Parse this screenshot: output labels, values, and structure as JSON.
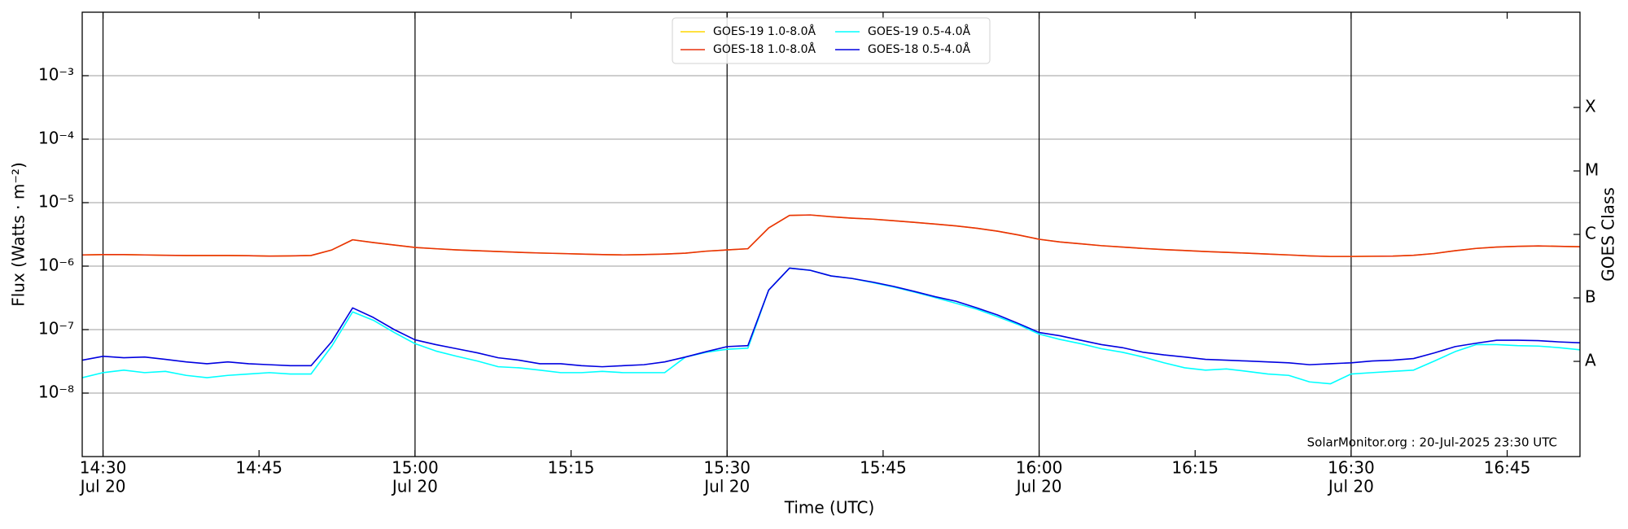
{
  "chart_data": {
    "type": "line",
    "xlabel": "Time (UTC)",
    "ylabel": "Flux (Watts · m⁻²)",
    "y2label": "GOES Class",
    "annotation": "SolarMonitor.org : 20-Jul-2025 23:30 UTC",
    "log_y": true,
    "grid": true,
    "legend": "upper center",
    "legend_columns": 2,
    "xlim": [
      "14:28",
      "16:52"
    ],
    "xticks": [
      {
        "value": "14:30",
        "label": "14:30",
        "date": "Jul 20"
      },
      "14:45",
      {
        "value": "15:00",
        "label": "15:00",
        "date": "Jul 20"
      },
      "15:15",
      {
        "value": "15:30",
        "label": "15:30",
        "date": "Jul 20"
      },
      "15:45",
      {
        "value": "16:00",
        "label": "16:00",
        "date": "Jul 20"
      },
      "16:15",
      {
        "value": "16:30",
        "label": "16:30",
        "date": "Jul 20"
      },
      "16:45"
    ],
    "ylim": [
      1e-09,
      0.01
    ],
    "yticks": [
      {
        "value": 1e-08,
        "label": "10⁻⁸"
      },
      {
        "value": 1e-07,
        "label": "10⁻⁷"
      },
      {
        "value": 1e-06,
        "label": "10⁻⁶"
      },
      {
        "value": 1e-05,
        "label": "10⁻⁵"
      },
      {
        "value": 0.0001,
        "label": "10⁻⁴"
      },
      {
        "value": 0.001,
        "label": "10⁻³"
      }
    ],
    "y2lim": [
      1e-09,
      0.01
    ],
    "y2ticks": [
      {
        "value": 3.16e-08,
        "label": "A"
      },
      {
        "value": 3.16e-07,
        "label": "B"
      },
      {
        "value": 3.16e-06,
        "label": "C"
      },
      {
        "value": 3.16e-05,
        "label": "M"
      },
      {
        "value": 0.000316,
        "label": "X"
      }
    ],
    "x": [
      "14:28",
      "14:30",
      "14:32",
      "14:34",
      "14:36",
      "14:38",
      "14:40",
      "14:42",
      "14:44",
      "14:46",
      "14:48",
      "14:50",
      "14:52",
      "14:54",
      "14:56",
      "14:58",
      "15:00",
      "15:02",
      "15:04",
      "15:06",
      "15:08",
      "15:10",
      "15:12",
      "15:14",
      "15:16",
      "15:18",
      "15:20",
      "15:22",
      "15:24",
      "15:26",
      "15:28",
      "15:30",
      "15:32",
      "15:34",
      "15:36",
      "15:38",
      "15:40",
      "15:42",
      "15:44",
      "15:46",
      "15:48",
      "15:50",
      "15:52",
      "15:54",
      "15:56",
      "15:58",
      "16:00",
      "16:02",
      "16:04",
      "16:06",
      "16:08",
      "16:10",
      "16:12",
      "16:14",
      "16:16",
      "16:18",
      "16:20",
      "16:22",
      "16:24",
      "16:26",
      "16:28",
      "16:30",
      "16:32",
      "16:34",
      "16:36",
      "16:38",
      "16:40",
      "16:42",
      "16:44",
      "16:46",
      "16:48",
      "16:50",
      "16:52"
    ],
    "series": [
      {
        "name": "GOES-19 1.0-8.0Å",
        "color": "#ffd700",
        "values": [
          1.5e-06,
          1.52e-06,
          1.52e-06,
          1.5e-06,
          1.48e-06,
          1.47e-06,
          1.47e-06,
          1.47e-06,
          1.46e-06,
          1.44e-06,
          1.45e-06,
          1.47e-06,
          1.8e-06,
          2.6e-06,
          2.35e-06,
          2.15e-06,
          1.97e-06,
          1.88e-06,
          1.8e-06,
          1.75e-06,
          1.7e-06,
          1.65e-06,
          1.61e-06,
          1.58e-06,
          1.55e-06,
          1.52e-06,
          1.5e-06,
          1.52e-06,
          1.55e-06,
          1.6e-06,
          1.72e-06,
          1.8e-06,
          1.88e-06,
          4e-06,
          6.3e-06,
          6.4e-06,
          6e-06,
          5.7e-06,
          5.5e-06,
          5.2e-06,
          4.9e-06,
          4.6e-06,
          4.3e-06,
          3.95e-06,
          3.55e-06,
          3.1e-06,
          2.65e-06,
          2.4e-06,
          2.25e-06,
          2.1e-06,
          2e-06,
          1.9e-06,
          1.82e-06,
          1.76e-06,
          1.7e-06,
          1.65e-06,
          1.6e-06,
          1.55e-06,
          1.5e-06,
          1.45e-06,
          1.42e-06,
          1.42e-06,
          1.43e-06,
          1.44e-06,
          1.48e-06,
          1.58e-06,
          1.75e-06,
          1.9e-06,
          2e-06,
          2.05e-06,
          2.08e-06,
          2.05e-06,
          2.02e-06
        ]
      },
      {
        "name": "GOES-18 1.0-8.0Å",
        "color": "#e8300c",
        "values": [
          1.5e-06,
          1.52e-06,
          1.52e-06,
          1.5e-06,
          1.48e-06,
          1.47e-06,
          1.47e-06,
          1.47e-06,
          1.46e-06,
          1.44e-06,
          1.45e-06,
          1.47e-06,
          1.8e-06,
          2.6e-06,
          2.35e-06,
          2.15e-06,
          1.97e-06,
          1.88e-06,
          1.8e-06,
          1.75e-06,
          1.7e-06,
          1.65e-06,
          1.61e-06,
          1.58e-06,
          1.55e-06,
          1.52e-06,
          1.5e-06,
          1.52e-06,
          1.55e-06,
          1.6e-06,
          1.72e-06,
          1.8e-06,
          1.88e-06,
          4e-06,
          6.3e-06,
          6.4e-06,
          6e-06,
          5.7e-06,
          5.5e-06,
          5.2e-06,
          4.9e-06,
          4.6e-06,
          4.3e-06,
          3.95e-06,
          3.55e-06,
          3.1e-06,
          2.65e-06,
          2.4e-06,
          2.25e-06,
          2.1e-06,
          2e-06,
          1.9e-06,
          1.82e-06,
          1.76e-06,
          1.7e-06,
          1.65e-06,
          1.6e-06,
          1.55e-06,
          1.5e-06,
          1.45e-06,
          1.42e-06,
          1.42e-06,
          1.43e-06,
          1.44e-06,
          1.48e-06,
          1.58e-06,
          1.75e-06,
          1.9e-06,
          2e-06,
          2.05e-06,
          2.08e-06,
          2.05e-06,
          2.02e-06
        ]
      },
      {
        "name": "GOES-19 0.5-4.0Å",
        "color": "#00ffff",
        "values": [
          1.75e-08,
          2.1e-08,
          2.3e-08,
          2.1e-08,
          2.2e-08,
          1.9e-08,
          1.75e-08,
          1.9e-08,
          2e-08,
          2.1e-08,
          2e-08,
          2e-08,
          5.5e-08,
          1.9e-07,
          1.4e-07,
          9e-08,
          6e-08,
          4.6e-08,
          3.8e-08,
          3.2e-08,
          2.6e-08,
          2.5e-08,
          2.3e-08,
          2.1e-08,
          2.1e-08,
          2.2e-08,
          2.1e-08,
          2.1e-08,
          2.1e-08,
          3.7e-08,
          4.4e-08,
          4.9e-08,
          5.1e-08,
          4.2e-07,
          9.3e-07,
          8.6e-07,
          7e-07,
          6.4e-07,
          5.5e-07,
          4.7e-07,
          3.9e-07,
          3.2e-07,
          2.6e-07,
          2.1e-07,
          1.6e-07,
          1.2e-07,
          8.5e-08,
          7e-08,
          6e-08,
          5e-08,
          4.4e-08,
          3.7e-08,
          3e-08,
          2.5e-08,
          2.3e-08,
          2.4e-08,
          2.2e-08,
          2e-08,
          1.9e-08,
          1.5e-08,
          1.4e-08,
          2e-08,
          2.1e-08,
          2.2e-08,
          2.3e-08,
          3.2e-08,
          4.5e-08,
          5.8e-08,
          5.8e-08,
          5.6e-08,
          5.5e-08,
          5.2e-08,
          4.8e-08
        ]
      },
      {
        "name": "GOES-18 0.5-4.0Å",
        "color": "#0000e0",
        "values": [
          3.3e-08,
          3.8e-08,
          3.6e-08,
          3.7e-08,
          3.4e-08,
          3.1e-08,
          2.9e-08,
          3.1e-08,
          2.9e-08,
          2.8e-08,
          2.7e-08,
          2.7e-08,
          6.5e-08,
          2.2e-07,
          1.55e-07,
          1e-07,
          6.9e-08,
          5.8e-08,
          5e-08,
          4.3e-08,
          3.6e-08,
          3.3e-08,
          2.9e-08,
          2.9e-08,
          2.7e-08,
          2.6e-08,
          2.7e-08,
          2.8e-08,
          3.1e-08,
          3.7e-08,
          4.5e-08,
          5.4e-08,
          5.6e-08,
          4.2e-07,
          9.3e-07,
          8.6e-07,
          7e-07,
          6.4e-07,
          5.6e-07,
          4.8e-07,
          4e-07,
          3.3e-07,
          2.8e-07,
          2.2e-07,
          1.7e-07,
          1.25e-07,
          9e-08,
          8e-08,
          6.8e-08,
          5.8e-08,
          5.2e-08,
          4.4e-08,
          4e-08,
          3.7e-08,
          3.4e-08,
          3.3e-08,
          3.2e-08,
          3.1e-08,
          3e-08,
          2.8e-08,
          2.9e-08,
          3e-08,
          3.2e-08,
          3.3e-08,
          3.5e-08,
          4.3e-08,
          5.4e-08,
          6.1e-08,
          6.8e-08,
          6.8e-08,
          6.7e-08,
          6.4e-08,
          6.2e-08
        ]
      }
    ]
  }
}
